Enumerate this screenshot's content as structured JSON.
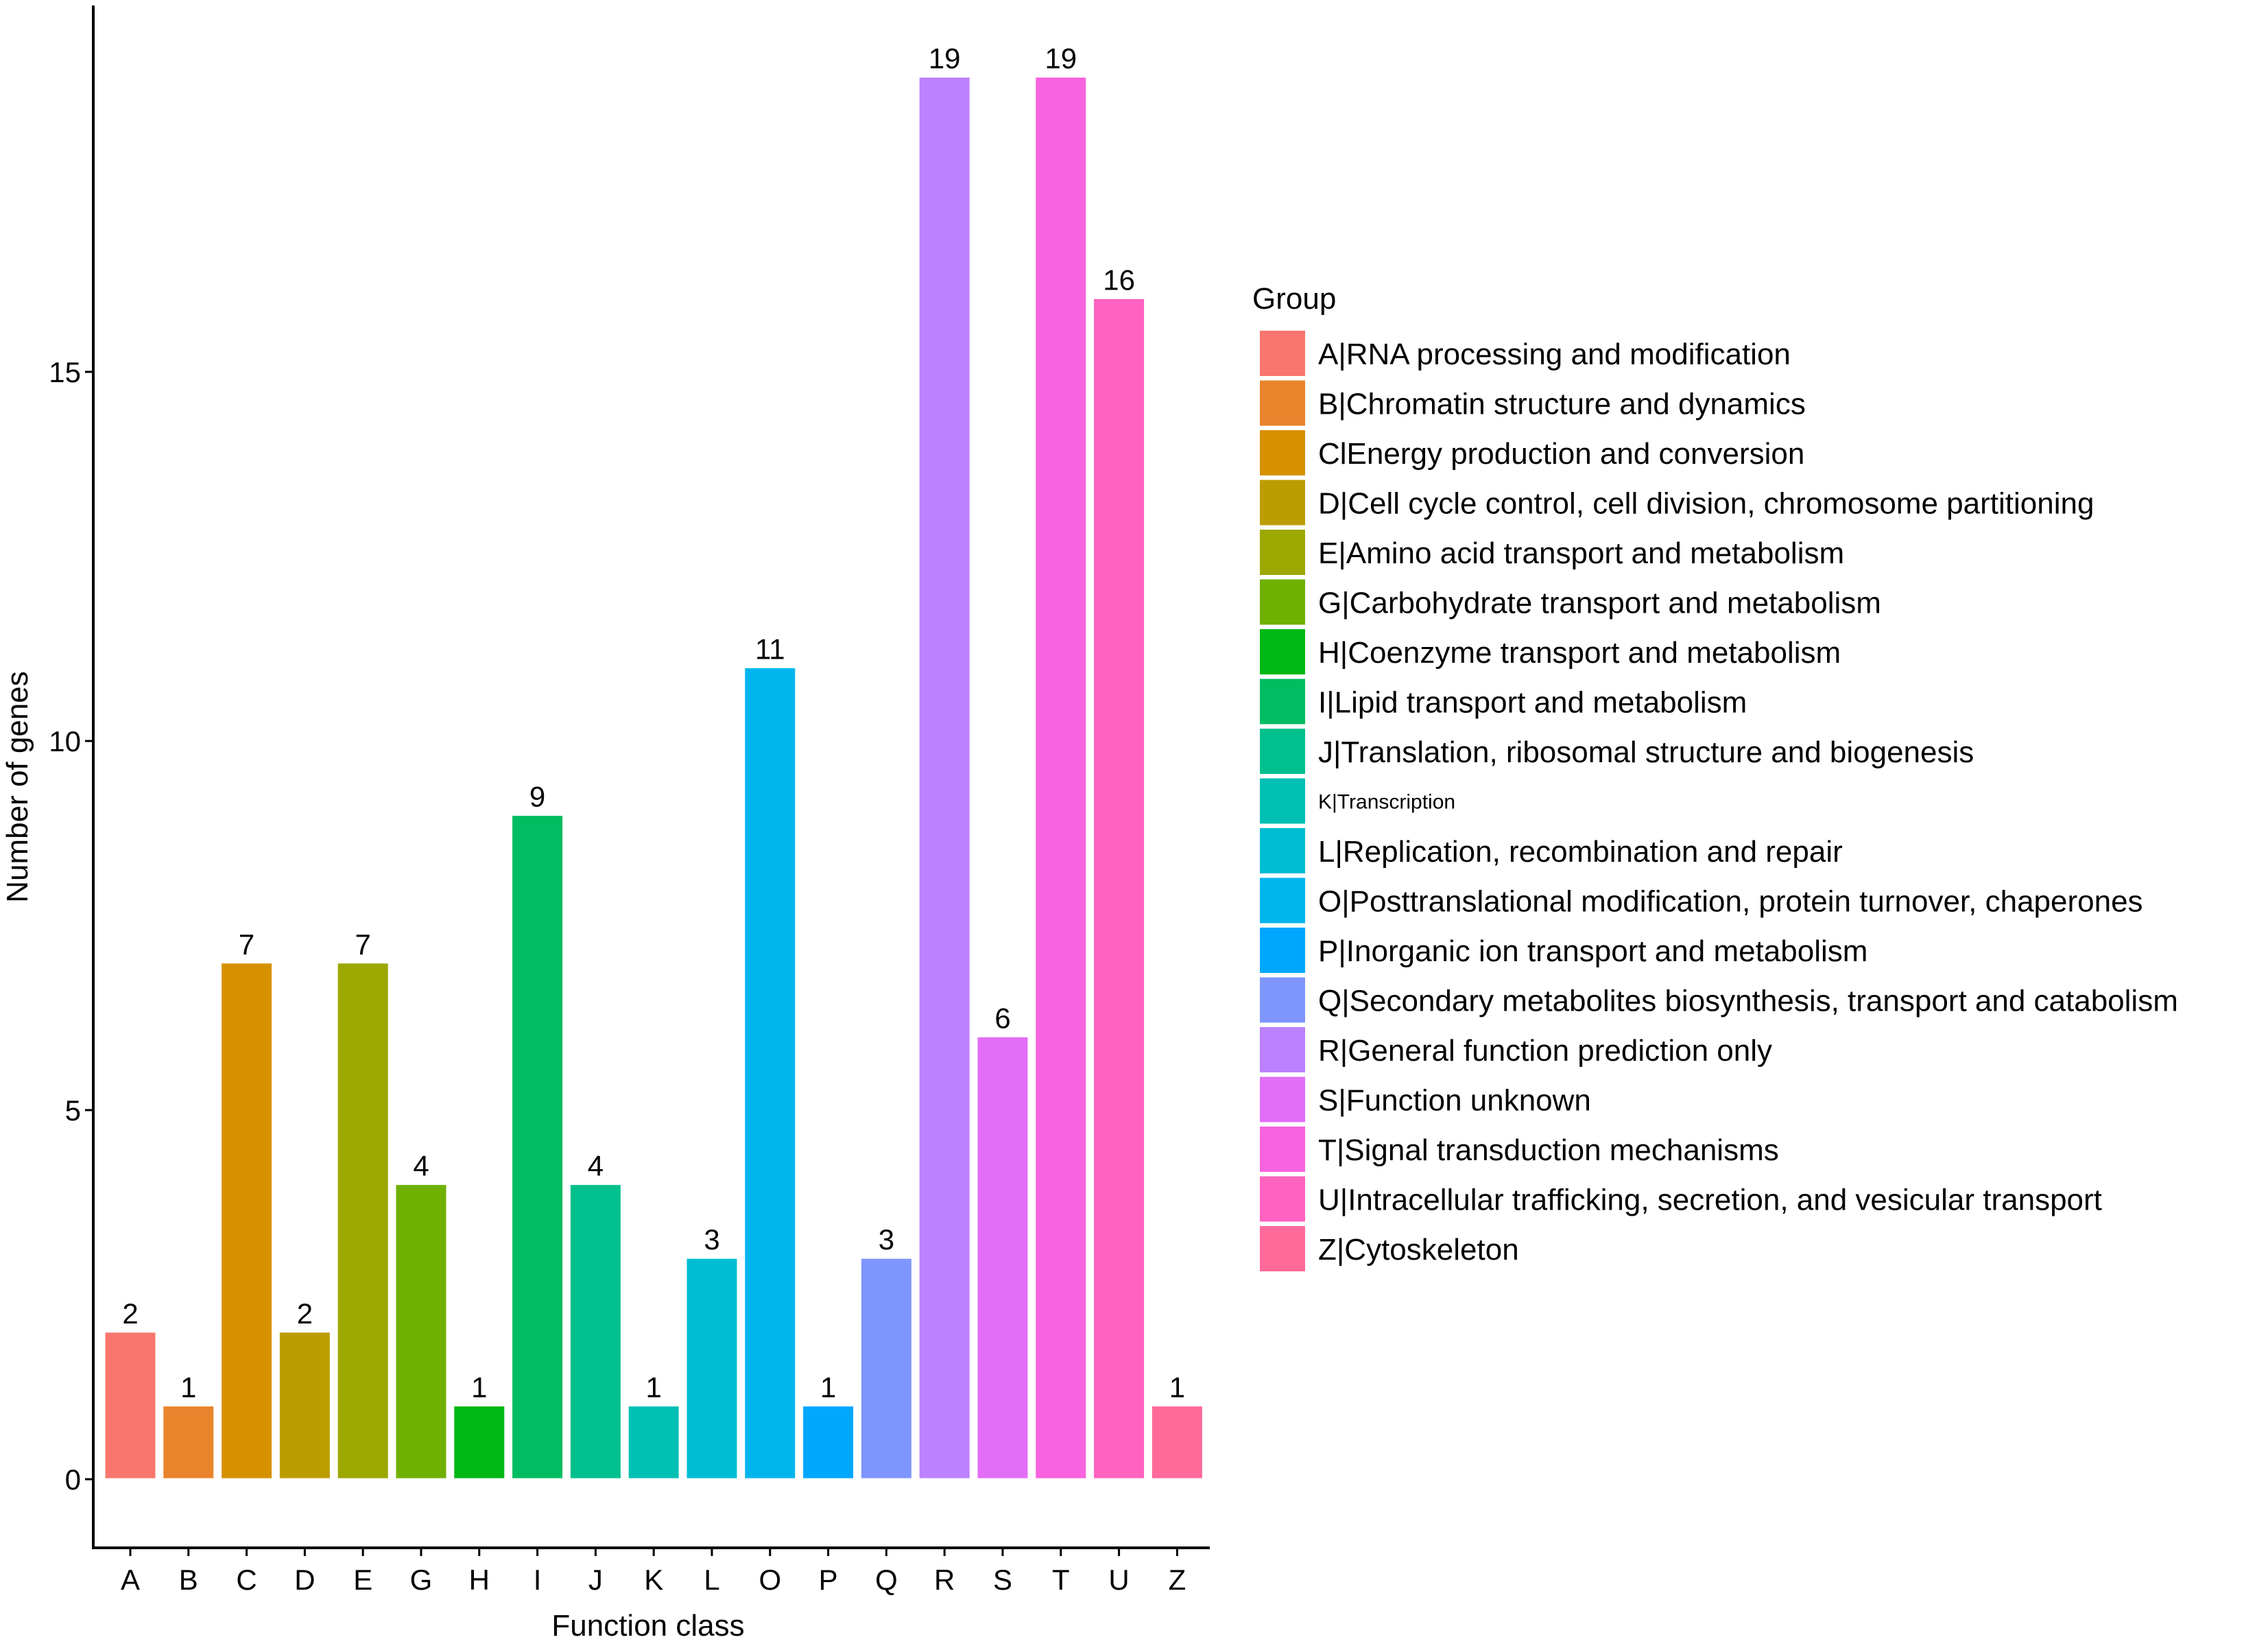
{
  "chart_data": {
    "type": "bar",
    "title": "",
    "xlabel": "Function class",
    "ylabel": "Number of genes",
    "ylim": [
      -0.4,
      19.9
    ],
    "yticks": [
      0,
      5,
      10,
      15
    ],
    "grid": false,
    "legend_position": "right",
    "legend_title": "Group",
    "categories": [
      "A",
      "B",
      "C",
      "D",
      "E",
      "G",
      "H",
      "I",
      "J",
      "K",
      "L",
      "O",
      "P",
      "Q",
      "R",
      "S",
      "T",
      "U",
      "Z"
    ],
    "values": [
      2,
      1,
      7,
      2,
      7,
      4,
      1,
      9,
      4,
      1,
      3,
      11,
      1,
      3,
      19,
      6,
      19,
      16,
      1
    ],
    "colors": [
      "#F8766D",
      "#E9842C",
      "#D69100",
      "#BC9D00",
      "#9CA700",
      "#6FB000",
      "#00B813",
      "#00BD61",
      "#00C08E",
      "#00C0B4",
      "#00BDD4",
      "#00B5EE",
      "#00A7FF",
      "#7F96FF",
      "#BC81FF",
      "#E26EF7",
      "#F863DF",
      "#FF62BF",
      "#FF6A9A"
    ],
    "legend_entries": [
      "A|RNA processing and modification",
      "B|Chromatin structure and dynamics",
      "ClEnergy production and conversion",
      "D|Cell cycle control, cell division, chromosome partitioning",
      "E|Amino acid transport and metabolism",
      "G|Carbohydrate transport and metabolism",
      "H|Coenzyme transport and metabolism",
      "I|Lipid transport and metabolism",
      "J|Translation, ribosomal structure and biogenesis",
      "K|Transcription",
      "L|Replication, recombination and repair",
      "O|Posttranslational modification, protein turnover, chaperones",
      "P|Inorganic ion transport and metabolism",
      "Q|Secondary metabolites biosynthesis, transport and catabolism",
      "R|General function prediction only",
      "S|Function unknown",
      "T|Signal transduction mechanisms",
      "U|Intracellular trafficking, secretion, and vesicular transport",
      "Z|Cytoskeleton"
    ]
  }
}
